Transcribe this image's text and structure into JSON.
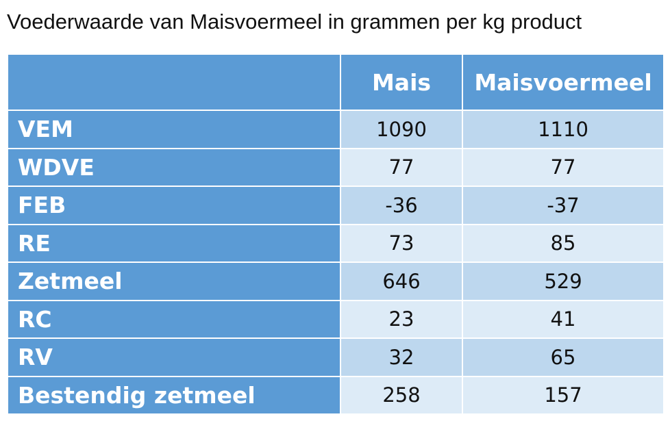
{
  "title": "Voederwaarde van Maisvoermeel in grammen per kg product",
  "table": {
    "columns": [
      "",
      "Mais",
      "Maisvoermeel"
    ],
    "rows": [
      {
        "label": "VEM",
        "values": [
          "1090",
          "1110"
        ]
      },
      {
        "label": "WDVE",
        "values": [
          "77",
          "77"
        ]
      },
      {
        "label": "FEB",
        "values": [
          "-36",
          "-37"
        ]
      },
      {
        "label": "RE",
        "values": [
          "73",
          "85"
        ]
      },
      {
        "label": "Zetmeel",
        "values": [
          "646",
          "529"
        ]
      },
      {
        "label": "RC",
        "values": [
          "23",
          "41"
        ]
      },
      {
        "label": "RV",
        "values": [
          "32",
          "65"
        ]
      },
      {
        "label": "Bestendig zetmeel",
        "values": [
          "258",
          "157"
        ]
      }
    ]
  },
  "colors": {
    "header_bg": "#5b9bd5",
    "row_dark": "#bdd7ee",
    "row_light": "#ddebf7",
    "header_text": "#ffffff"
  }
}
